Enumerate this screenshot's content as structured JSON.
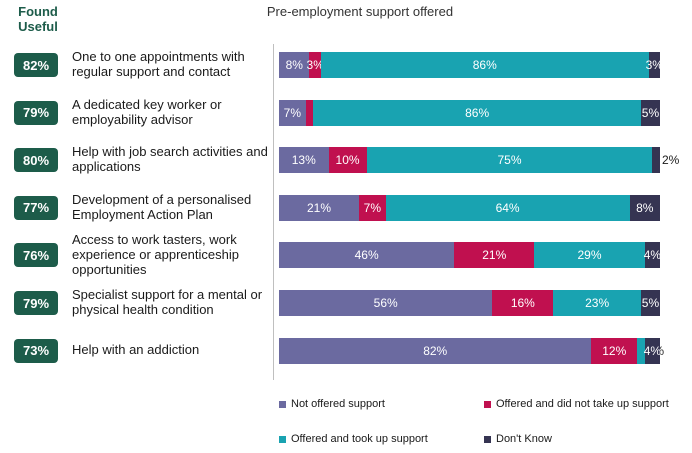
{
  "header": {
    "found_useful": "Found Useful"
  },
  "chart_data": {
    "type": "bar",
    "orientation": "horizontal",
    "stacked": true,
    "title": "Pre-employment support offered",
    "categories": [
      "One to one appointments with regular support and contact",
      "A dedicated key worker or employability advisor",
      "Help with job search activities and applications",
      "Development of a personalised Employment Action Plan",
      "Access to work tasters, work experience or apprenticeship opportunities",
      "Specialist support for a mental or physical health condition",
      "Help with an addiction"
    ],
    "found_useful": [
      "82%",
      "79%",
      "80%",
      "77%",
      "76%",
      "79%",
      "73%"
    ],
    "series": [
      {
        "name": "Not offered support",
        "color": "#6b6aa0",
        "values": [
          8,
          7,
          13,
          21,
          46,
          56,
          82
        ]
      },
      {
        "name": "Offered and did not take up support",
        "color": "#c0104f",
        "values": [
          3,
          2,
          10,
          7,
          21,
          16,
          12
        ]
      },
      {
        "name": "Offered and took up support",
        "color": "#19a3b1",
        "values": [
          86,
          86,
          75,
          64,
          29,
          23,
          2
        ]
      },
      {
        "name": "Don't Know",
        "color": "#353452",
        "values": [
          3,
          5,
          2,
          8,
          4,
          5,
          4
        ]
      }
    ],
    "unit": "%",
    "xlim": [
      0,
      100
    ],
    "legend_position": "bottom",
    "grid": false
  }
}
